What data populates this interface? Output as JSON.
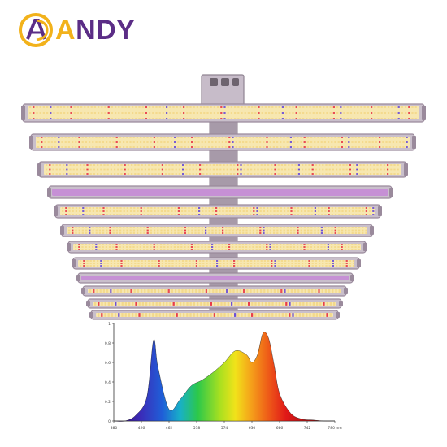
{
  "brand": {
    "name": "ANDY",
    "logo_letters": "AD",
    "colors": {
      "gold": "#f2b21b",
      "purple": "#5b2d86"
    }
  },
  "product": {
    "type": "LED grow light",
    "bar_count": 12,
    "colors": {
      "frame": "#9a8a9c",
      "housing": "#c9bfcb",
      "led_warm": "#f7e7b0",
      "led_red": "#e83a4a",
      "led_blue": "#6a4dd8",
      "glow_purple": "#c58bd6"
    }
  },
  "spectrum_chart": {
    "chart_data": {
      "type": "area",
      "x": [
        380,
        400,
        420,
        440,
        452,
        460,
        480,
        500,
        520,
        540,
        560,
        580,
        600,
        620,
        630,
        640,
        650,
        660,
        670,
        680,
        700,
        720,
        740,
        760,
        780
      ],
      "series": [
        {
          "values": [
            0.0,
            0.0,
            0.06,
            0.25,
            0.83,
            0.55,
            0.12,
            0.22,
            0.36,
            0.42,
            0.5,
            0.6,
            0.72,
            0.68,
            0.6,
            0.68,
            0.9,
            0.85,
            0.58,
            0.28,
            0.08,
            0.02,
            0.01,
            0.0,
            0.0
          ]
        }
      ],
      "xlim": [
        380,
        780
      ],
      "ylim": [
        0,
        1.0
      ],
      "y_ticks": [
        "0",
        "0.2",
        "0.4",
        "0.6",
        "0.8",
        "1"
      ],
      "x_ticks": [
        "380",
        "426",
        "462",
        "518",
        "574",
        "630",
        "686",
        "742",
        "780 nm"
      ],
      "grid": false
    }
  }
}
